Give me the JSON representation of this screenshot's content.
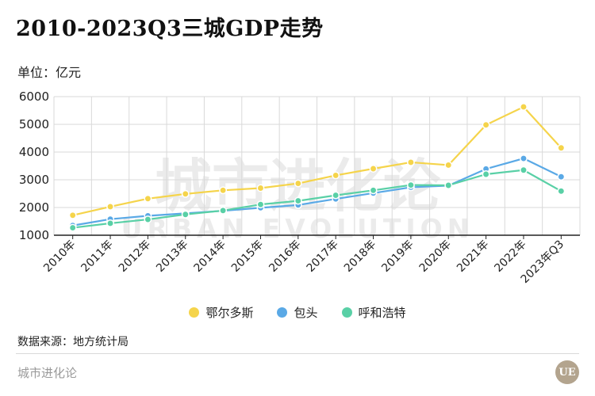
{
  "header": {
    "title": "2010-2023Q3三城GDP走势",
    "unit": "单位：亿元"
  },
  "footer": {
    "source": "数据来源：地方统计局",
    "brand": "城市进化论",
    "logo_text": "UE"
  },
  "watermark": {
    "cn": "城市进化论",
    "en": "URBAN EVOLUTION"
  },
  "chart_data": {
    "type": "line",
    "title": "2010-2023Q3三城GDP走势",
    "ylabel": "单位：亿元",
    "ylim": [
      1000,
      6000
    ],
    "yticks": [
      1000,
      2000,
      3000,
      4000,
      5000,
      6000
    ],
    "grid": true,
    "legend_position": "bottom",
    "categories": [
      "2010年",
      "2011年",
      "2012年",
      "2013年",
      "2014年",
      "2015年",
      "2016年",
      "2017年",
      "2018年",
      "2019年",
      "2020年",
      "2021年",
      "2022年",
      "2023年Q3"
    ],
    "series": [
      {
        "name": "鄂尔多斯",
        "color": "#f5d44b",
        "values": [
          1720,
          2030,
          2320,
          2490,
          2620,
          2700,
          2870,
          3160,
          3400,
          3630,
          3530,
          4980,
          5630,
          4150
        ]
      },
      {
        "name": "包头",
        "color": "#5aa9e6",
        "values": [
          1350,
          1580,
          1700,
          1790,
          1880,
          1990,
          2090,
          2310,
          2520,
          2730,
          2790,
          3390,
          3770,
          3110
        ]
      },
      {
        "name": "呼和浩特",
        "color": "#59d0a6",
        "values": [
          1270,
          1430,
          1570,
          1750,
          1890,
          2110,
          2240,
          2440,
          2620,
          2810,
          2800,
          3200,
          3350,
          2590
        ]
      }
    ]
  }
}
